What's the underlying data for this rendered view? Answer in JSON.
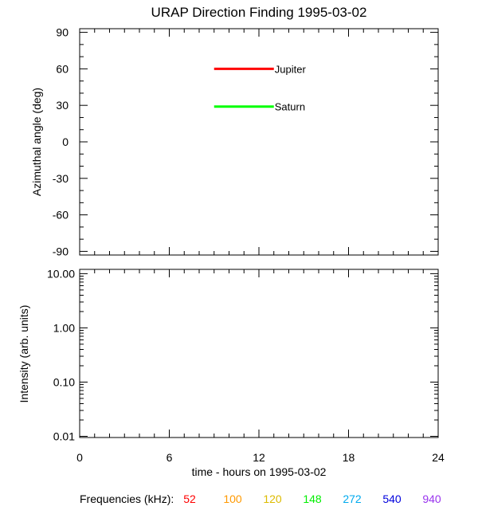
{
  "title": "URAP Direction Finding  1995-03-02",
  "chart_data": [
    {
      "type": "line",
      "ylabel": "Azimuthal angle (deg)",
      "ylim": [
        -93,
        93
      ],
      "yticks": [
        "90",
        "60",
        "30",
        "0",
        "-30",
        "-60",
        "-90"
      ],
      "ytick_values": [
        90,
        60,
        30,
        0,
        -30,
        -60,
        -90
      ],
      "xlim": [
        0,
        24
      ],
      "grid": false,
      "series": [
        {
          "name": "Jupiter",
          "color": "#ff0000",
          "x": [
            9,
            13
          ],
          "y": [
            60,
            60
          ]
        },
        {
          "name": "Saturn",
          "color": "#00ff00",
          "x": [
            9,
            13
          ],
          "y": [
            29,
            29
          ]
        }
      ]
    },
    {
      "type": "line",
      "ylabel": "Intensity (arb. units)",
      "yscale": "log",
      "ylim": [
        0.0095,
        12
      ],
      "yticks": [
        "10.00",
        "1.00",
        "0.10",
        "0.01"
      ],
      "ytick_values": [
        10,
        1,
        0.1,
        0.01
      ],
      "xlabel": "time - hours on 1995-03-02",
      "xlim": [
        0,
        24
      ],
      "xticks": [
        "0",
        "6",
        "12",
        "18",
        "24"
      ],
      "xtick_values": [
        0,
        6,
        12,
        18,
        24
      ],
      "grid": false,
      "series": []
    }
  ],
  "frequencies": {
    "label": "Frequencies (kHz):",
    "items": [
      {
        "value": "52",
        "color": "#ff0000"
      },
      {
        "value": "100",
        "color": "#ff9900"
      },
      {
        "value": "120",
        "color": "#ddbb00"
      },
      {
        "value": "148",
        "color": "#00ee00"
      },
      {
        "value": "272",
        "color": "#00aaee"
      },
      {
        "value": "540",
        "color": "#0000dd"
      },
      {
        "value": "940",
        "color": "#9933ee"
      }
    ]
  }
}
